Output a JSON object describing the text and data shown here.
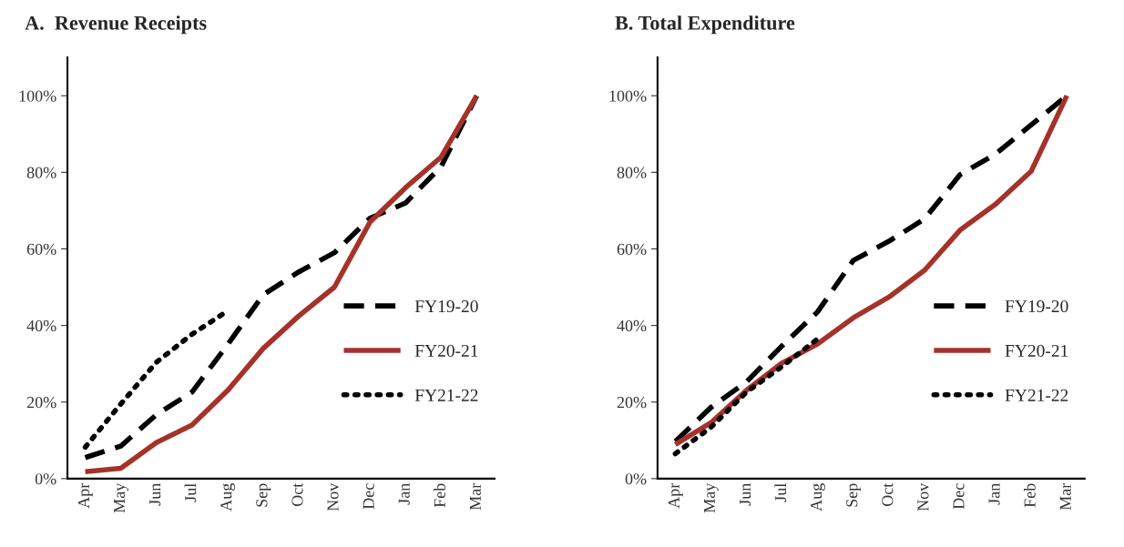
{
  "chart_data": [
    {
      "type": "line",
      "title": "A.  Revenue Receipts",
      "categories": [
        "Apr",
        "May",
        "Jun",
        "Jul",
        "Aug",
        "Sep",
        "Oct",
        "Nov",
        "Dec",
        "Jan",
        "Feb",
        "Mar"
      ],
      "ylim": [
        0,
        110
      ],
      "yticks": [
        {
          "value": 0,
          "label": "0%"
        },
        {
          "value": 20,
          "label": "20%"
        },
        {
          "value": 40,
          "label": "40%"
        },
        {
          "value": 60,
          "label": "60%"
        },
        {
          "value": 80,
          "label": "80%"
        },
        {
          "value": 100,
          "label": "100%"
        }
      ],
      "grid": false,
      "legend": "right",
      "series": [
        {
          "name": "FY19-20",
          "color": "#000000",
          "line_style": "dashed",
          "values": [
            5.5,
            8.5,
            16.7,
            22.6,
            35,
            48,
            54,
            59,
            68,
            72,
            81.5,
            100
          ]
        },
        {
          "name": "FY20-21",
          "color": "#a5322a",
          "line_style": "solid",
          "values": [
            1.8,
            2.7,
            9.4,
            14,
            23,
            34,
            42.5,
            50,
            67,
            76,
            84,
            100
          ]
        },
        {
          "name": "FY21-22",
          "color": "#000000",
          "line_style": "dotted",
          "values": [
            8.2,
            19.5,
            30.4,
            37.7,
            43.8,
            null,
            null,
            null,
            null,
            null,
            null,
            null
          ]
        }
      ]
    },
    {
      "type": "line",
      "title": "B. Total Expenditure",
      "categories": [
        "Apr",
        "May",
        "Jun",
        "Jul",
        "Aug",
        "Sep",
        "Oct",
        "Nov",
        "Dec",
        "Jan",
        "Feb",
        "Mar"
      ],
      "ylim": [
        0,
        110
      ],
      "yticks": [
        {
          "value": 0,
          "label": "0%"
        },
        {
          "value": 20,
          "label": "20%"
        },
        {
          "value": 40,
          "label": "40%"
        },
        {
          "value": 60,
          "label": "60%"
        },
        {
          "value": 80,
          "label": "80%"
        },
        {
          "value": 100,
          "label": "100%"
        }
      ],
      "grid": false,
      "legend": "right",
      "series": [
        {
          "name": "FY19-20",
          "color": "#000000",
          "line_style": "dashed",
          "values": [
            9.7,
            18.6,
            25.3,
            34.7,
            43.6,
            57,
            62,
            67.8,
            79.4,
            84.8,
            92.4,
            100
          ]
        },
        {
          "name": "FY20-21",
          "color": "#a5322a",
          "line_style": "solid",
          "values": [
            8.9,
            14.6,
            23.1,
            30.2,
            35.2,
            42,
            47.4,
            54.4,
            64.9,
            71.7,
            80.3,
            100
          ]
        },
        {
          "name": "FY21-22",
          "color": "#000000",
          "line_style": "dotted",
          "values": [
            6.5,
            13.4,
            22.6,
            29.3,
            36.5,
            null,
            null,
            null,
            null,
            null,
            null,
            null
          ]
        }
      ]
    }
  ]
}
